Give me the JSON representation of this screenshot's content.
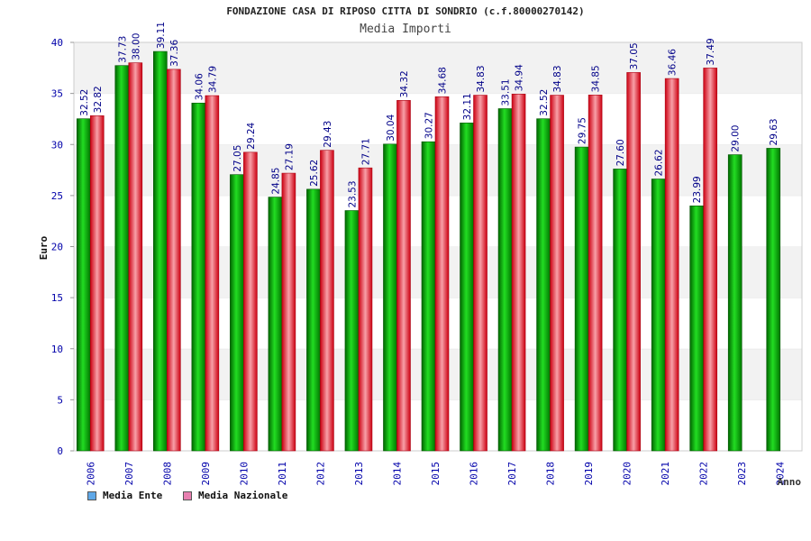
{
  "chart_data": {
    "type": "bar",
    "title": "FONDAZIONE CASA DI RIPOSO CITTA DI SONDRIO (c.f.80000270142)",
    "subtitle": "Media Importi",
    "ylabel": "Euro",
    "xlabel": "Anno",
    "ylim": [
      0,
      40
    ],
    "yticks": [
      0,
      5,
      10,
      15,
      20,
      25,
      30,
      35,
      40
    ],
    "grid": "horizontal bands",
    "legend_position": "bottom-left",
    "categories": [
      "2006",
      "2007",
      "2008",
      "2009",
      "2010",
      "2011",
      "2012",
      "2013",
      "2014",
      "2015",
      "2016",
      "2017",
      "2018",
      "2019",
      "2020",
      "2021",
      "2022",
      "2023",
      "2024"
    ],
    "series": [
      {
        "name": "Media Ente",
        "color": "#00aa00",
        "legend_color": "#5fa8e8",
        "values": [
          32.52,
          37.73,
          39.11,
          34.06,
          27.05,
          24.85,
          25.62,
          23.53,
          30.04,
          30.27,
          32.11,
          33.51,
          32.52,
          29.75,
          27.6,
          26.62,
          23.99,
          29.0,
          29.63
        ],
        "labels": [
          "32.52",
          "37.73",
          "39.11",
          "34.06",
          "27.05",
          "24.85",
          "25.62",
          "23.53",
          "30.04",
          "30.27",
          "32.11",
          "33.51",
          "32.52",
          "29.75",
          "27.60",
          "26.62",
          "23.99",
          "29.00",
          "29.63"
        ]
      },
      {
        "name": "Media Nazionale",
        "color": "#dd2233",
        "legend_color": "#e87fb0",
        "values": [
          32.82,
          38.0,
          37.36,
          34.79,
          29.24,
          27.19,
          29.43,
          27.71,
          34.32,
          34.68,
          34.83,
          34.94,
          34.83,
          34.85,
          37.05,
          36.46,
          37.49,
          null,
          null
        ],
        "labels": [
          "32.82",
          "38.00",
          "37.36",
          "34.79",
          "29.24",
          "27.19",
          "29.43",
          "27.71",
          "34.32",
          "34.68",
          "34.83",
          "34.94",
          "34.83",
          "34.85",
          "37.05",
          "36.46",
          "37.49",
          null,
          null
        ]
      }
    ]
  }
}
